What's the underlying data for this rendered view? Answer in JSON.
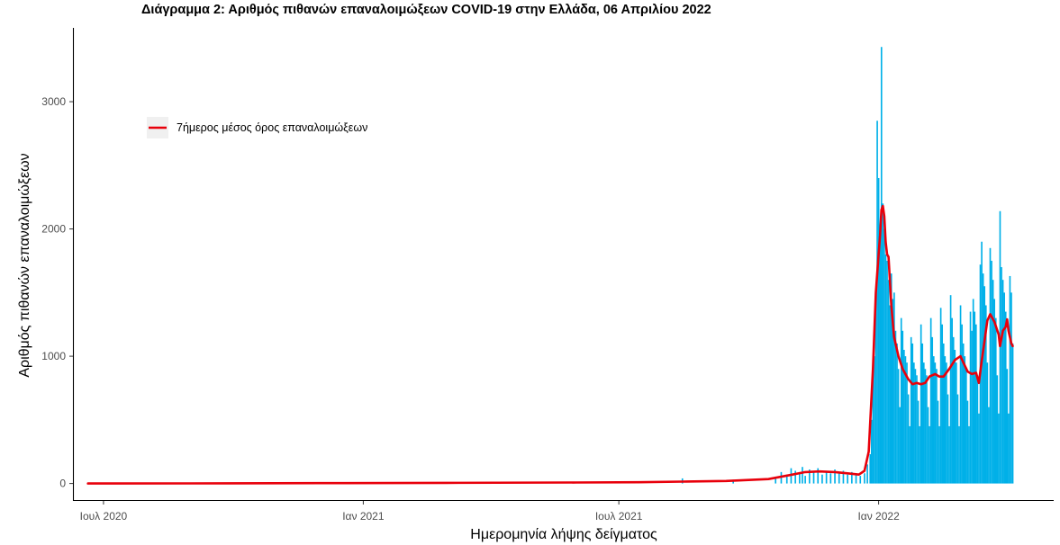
{
  "chart_data": {
    "type": "bar",
    "title": "Διάγραμμα 2: Αριθμός πιθανών επαναλοιμώξεων COVID-19 στην Ελλάδα, 06 Απριλίου 2022",
    "xlabel": "Ημερομηνία λήψης δείγματος",
    "ylabel": "Αριθμός πιθανών επαναλοιμώξεων",
    "x_range": [
      "2020-06-10",
      "2022-05-05"
    ],
    "ylim": [
      -130,
      3580
    ],
    "x_ticks": [
      {
        "date": "2020-07-01",
        "label": "Ιουλ 2020"
      },
      {
        "date": "2021-01-01",
        "label": "Ιαν 2021"
      },
      {
        "date": "2021-07-01",
        "label": "Ιουλ 2021"
      },
      {
        "date": "2022-01-01",
        "label": "Ιαν 2022"
      }
    ],
    "y_ticks": [
      0,
      1000,
      2000,
      3000
    ],
    "grid": false,
    "legend_position": "top-left",
    "series": [
      {
        "name": "",
        "type": "bar",
        "color": "#00b0e8",
        "points": [
          [
            "2021-08-15",
            40
          ],
          [
            "2021-09-20",
            30
          ],
          [
            "2021-10-20",
            50
          ],
          [
            "2021-10-24",
            90
          ],
          [
            "2021-10-28",
            70
          ],
          [
            "2021-10-31",
            120
          ],
          [
            "2021-11-03",
            100
          ],
          [
            "2021-11-06",
            80
          ],
          [
            "2021-11-08",
            130
          ],
          [
            "2021-11-10",
            60
          ],
          [
            "2021-11-13",
            110
          ],
          [
            "2021-11-16",
            90
          ],
          [
            "2021-11-19",
            120
          ],
          [
            "2021-11-22",
            70
          ],
          [
            "2021-11-25",
            100
          ],
          [
            "2021-11-28",
            80
          ],
          [
            "2021-12-01",
            110
          ],
          [
            "2021-12-04",
            90
          ],
          [
            "2021-12-07",
            100
          ],
          [
            "2021-12-10",
            70
          ],
          [
            "2021-12-13",
            90
          ],
          [
            "2021-12-16",
            80
          ],
          [
            "2021-12-19",
            60
          ],
          [
            "2021-12-22",
            80
          ],
          [
            "2021-12-24",
            150
          ],
          [
            "2021-12-26",
            230
          ],
          [
            "2021-12-27",
            500
          ],
          [
            "2021-12-28",
            900
          ],
          [
            "2021-12-29",
            1000
          ],
          [
            "2021-12-30",
            1500
          ],
          [
            "2021-12-31",
            2850
          ],
          [
            "2022-01-01",
            2400
          ],
          [
            "2022-01-02",
            2020
          ],
          [
            "2022-01-03",
            3430
          ],
          [
            "2022-01-04",
            2200
          ],
          [
            "2022-01-05",
            2000
          ],
          [
            "2022-01-06",
            1800
          ],
          [
            "2022-01-07",
            1750
          ],
          [
            "2022-01-08",
            1600
          ],
          [
            "2022-01-09",
            1400
          ],
          [
            "2022-01-10",
            1650
          ],
          [
            "2022-01-11",
            1450
          ],
          [
            "2022-01-12",
            1500
          ],
          [
            "2022-01-13",
            1200
          ],
          [
            "2022-01-14",
            1100
          ],
          [
            "2022-01-15",
            900
          ],
          [
            "2022-01-16",
            600
          ],
          [
            "2022-01-17",
            1300
          ],
          [
            "2022-01-18",
            1200
          ],
          [
            "2022-01-19",
            1050
          ],
          [
            "2022-01-20",
            1000
          ],
          [
            "2022-01-21",
            950
          ],
          [
            "2022-01-22",
            700
          ],
          [
            "2022-01-23",
            450
          ],
          [
            "2022-01-24",
            1150
          ],
          [
            "2022-01-25",
            1100
          ],
          [
            "2022-01-26",
            950
          ],
          [
            "2022-01-27",
            900
          ],
          [
            "2022-01-28",
            850
          ],
          [
            "2022-01-29",
            650
          ],
          [
            "2022-01-30",
            450
          ],
          [
            "2022-01-31",
            1250
          ],
          [
            "2022-02-01",
            1100
          ],
          [
            "2022-02-02",
            950
          ],
          [
            "2022-02-03",
            900
          ],
          [
            "2022-02-04",
            850
          ],
          [
            "2022-02-05",
            600
          ],
          [
            "2022-02-06",
            450
          ],
          [
            "2022-02-07",
            1300
          ],
          [
            "2022-02-08",
            1150
          ],
          [
            "2022-02-09",
            1000
          ],
          [
            "2022-02-10",
            950
          ],
          [
            "2022-02-11",
            900
          ],
          [
            "2022-02-12",
            650
          ],
          [
            "2022-02-13",
            450
          ],
          [
            "2022-02-14",
            1380
          ],
          [
            "2022-02-15",
            1250
          ],
          [
            "2022-02-16",
            1100
          ],
          [
            "2022-02-17",
            1000
          ],
          [
            "2022-02-18",
            950
          ],
          [
            "2022-02-19",
            700
          ],
          [
            "2022-02-20",
            450
          ],
          [
            "2022-02-21",
            1480
          ],
          [
            "2022-02-22",
            1300
          ],
          [
            "2022-02-23",
            1150
          ],
          [
            "2022-02-24",
            1050
          ],
          [
            "2022-02-25",
            950
          ],
          [
            "2022-02-26",
            700
          ],
          [
            "2022-02-27",
            450
          ],
          [
            "2022-02-28",
            1400
          ],
          [
            "2022-03-01",
            1250
          ],
          [
            "2022-03-02",
            1100
          ],
          [
            "2022-03-03",
            1000
          ],
          [
            "2022-03-04",
            900
          ],
          [
            "2022-03-05",
            650
          ],
          [
            "2022-03-06",
            450
          ],
          [
            "2022-03-07",
            1350
          ],
          [
            "2022-03-08",
            1200
          ],
          [
            "2022-03-09",
            1450
          ],
          [
            "2022-03-10",
            1350
          ],
          [
            "2022-03-11",
            1250
          ],
          [
            "2022-03-12",
            850
          ],
          [
            "2022-03-13",
            550
          ],
          [
            "2022-03-14",
            1720
          ],
          [
            "2022-03-15",
            1900
          ],
          [
            "2022-03-16",
            1650
          ],
          [
            "2022-03-17",
            1550
          ],
          [
            "2022-03-18",
            1400
          ],
          [
            "2022-03-19",
            950
          ],
          [
            "2022-03-20",
            600
          ],
          [
            "2022-03-21",
            1850
          ],
          [
            "2022-03-22",
            1750
          ],
          [
            "2022-03-23",
            1600
          ],
          [
            "2022-03-24",
            1450
          ],
          [
            "2022-03-25",
            1300
          ],
          [
            "2022-03-26",
            850
          ],
          [
            "2022-03-27",
            550
          ],
          [
            "2022-03-28",
            2140
          ],
          [
            "2022-03-29",
            1700
          ],
          [
            "2022-03-30",
            1600
          ],
          [
            "2022-03-31",
            1500
          ],
          [
            "2022-04-01",
            1350
          ],
          [
            "2022-04-02",
            900
          ],
          [
            "2022-04-03",
            550
          ],
          [
            "2022-04-04",
            1630
          ],
          [
            "2022-04-05",
            1500
          ],
          [
            "2022-04-06",
            1100
          ]
        ]
      },
      {
        "name": "7ήμερος μέσος όρος επαναλοιμώξεων",
        "type": "line",
        "color": "#e8000b",
        "points": [
          [
            "2020-06-20",
            0
          ],
          [
            "2020-09-01",
            1
          ],
          [
            "2020-12-01",
            3
          ],
          [
            "2021-03-01",
            5
          ],
          [
            "2021-06-01",
            8
          ],
          [
            "2021-07-15",
            10
          ],
          [
            "2021-08-15",
            15
          ],
          [
            "2021-09-15",
            20
          ],
          [
            "2021-10-15",
            35
          ],
          [
            "2021-11-01",
            70
          ],
          [
            "2021-11-10",
            90
          ],
          [
            "2021-11-20",
            95
          ],
          [
            "2021-12-01",
            90
          ],
          [
            "2021-12-10",
            80
          ],
          [
            "2021-12-18",
            70
          ],
          [
            "2021-12-22",
            100
          ],
          [
            "2021-12-25",
            250
          ],
          [
            "2021-12-28",
            900
          ],
          [
            "2021-12-30",
            1500
          ],
          [
            "2022-01-01",
            1800
          ],
          [
            "2022-01-02",
            1950
          ],
          [
            "2022-01-03",
            2150
          ],
          [
            "2022-01-04",
            2180
          ],
          [
            "2022-01-05",
            2100
          ],
          [
            "2022-01-06",
            1900
          ],
          [
            "2022-01-07",
            1800
          ],
          [
            "2022-01-08",
            1780
          ],
          [
            "2022-01-10",
            1400
          ],
          [
            "2022-01-12",
            1150
          ],
          [
            "2022-01-15",
            1000
          ],
          [
            "2022-01-18",
            900
          ],
          [
            "2022-01-22",
            820
          ],
          [
            "2022-01-25",
            780
          ],
          [
            "2022-01-28",
            790
          ],
          [
            "2022-01-31",
            780
          ],
          [
            "2022-02-03",
            790
          ],
          [
            "2022-02-06",
            840
          ],
          [
            "2022-02-10",
            860
          ],
          [
            "2022-02-13",
            840
          ],
          [
            "2022-02-16",
            840
          ],
          [
            "2022-02-20",
            900
          ],
          [
            "2022-02-24",
            970
          ],
          [
            "2022-02-28",
            1000
          ],
          [
            "2022-03-02",
            950
          ],
          [
            "2022-03-05",
            880
          ],
          [
            "2022-03-08",
            860
          ],
          [
            "2022-03-11",
            870
          ],
          [
            "2022-03-13",
            790
          ],
          [
            "2022-03-15",
            960
          ],
          [
            "2022-03-17",
            1120
          ],
          [
            "2022-03-19",
            1280
          ],
          [
            "2022-03-21",
            1330
          ],
          [
            "2022-03-24",
            1270
          ],
          [
            "2022-03-27",
            1170
          ],
          [
            "2022-03-28",
            1080
          ],
          [
            "2022-03-30",
            1200
          ],
          [
            "2022-04-01",
            1230
          ],
          [
            "2022-04-02",
            1290
          ],
          [
            "2022-04-03",
            1200
          ],
          [
            "2022-04-04",
            1150
          ],
          [
            "2022-04-05",
            1100
          ],
          [
            "2022-04-06",
            1080
          ]
        ]
      }
    ]
  }
}
